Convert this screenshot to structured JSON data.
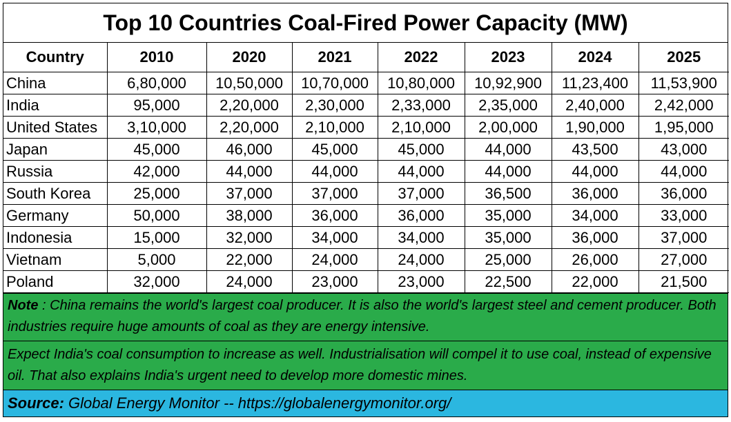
{
  "title": "Top 10 Countries Coal-Fired Power Capacity (MW)",
  "table": {
    "headers": [
      "Country",
      "2010",
      "2020",
      "2021",
      "2022",
      "2023",
      "2024",
      "2025"
    ],
    "rows": [
      [
        "China",
        "6,80,000",
        "10,50,000",
        "10,70,000",
        "10,80,000",
        "10,92,900",
        "11,23,400",
        "11,53,900"
      ],
      [
        "India",
        "95,000",
        "2,20,000",
        "2,30,000",
        "2,33,000",
        "2,35,000",
        "2,40,000",
        "2,42,000"
      ],
      [
        "United States",
        "3,10,000",
        "2,20,000",
        "2,10,000",
        "2,10,000",
        "2,00,000",
        "1,90,000",
        "1,95,000"
      ],
      [
        "Japan",
        "45,000",
        "46,000",
        "45,000",
        "45,000",
        "44,000",
        "43,500",
        "43,000"
      ],
      [
        "Russia",
        "42,000",
        "44,000",
        "44,000",
        "44,000",
        "44,000",
        "44,000",
        "44,000"
      ],
      [
        "South Korea",
        "25,000",
        "37,000",
        "37,000",
        "37,000",
        "36,500",
        "36,000",
        "36,000"
      ],
      [
        "Germany",
        "50,000",
        "38,000",
        "36,000",
        "36,000",
        "35,000",
        "34,000",
        "33,000"
      ],
      [
        "Indonesia",
        "15,000",
        "32,000",
        "34,000",
        "34,000",
        "35,000",
        "36,000",
        "37,000"
      ],
      [
        "Vietnam",
        "5,000",
        "22,000",
        "24,000",
        "24,000",
        "25,000",
        "26,000",
        "27,000"
      ],
      [
        "Poland",
        "32,000",
        "24,000",
        "23,000",
        "23,000",
        "22,500",
        "22,000",
        "21,500"
      ]
    ]
  },
  "note": {
    "label": "Note",
    "separator": " :  ",
    "text": "China remains the world's largest coal producer.  It is also the world's largest steel and cement producer.  Both industries require huge amounts of coal as they are energy intensive."
  },
  "note2": {
    "text": "Expect India's coal consumption to increase as well.  Industrialisation will compel it to use coal, instead of expensive oil.  That also explains India's urgent need to develop more domestic mines."
  },
  "source": {
    "label": "Source:",
    "text": "  Global Energy Monitor --  https://globalenergymonitor.org/"
  },
  "colors": {
    "note_background": "#2aab4a",
    "source_background": "#2bb7e0"
  }
}
